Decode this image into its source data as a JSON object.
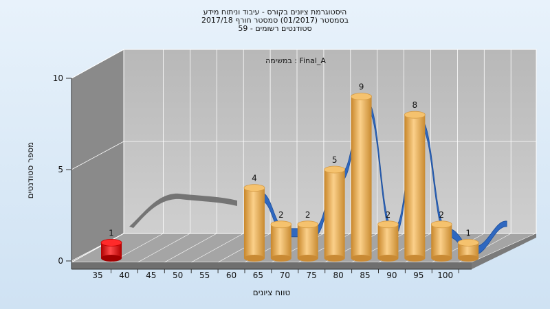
{
  "title_lines": [
    "היסטוגרמת ציונים בקורס - עיבוד וניתוח מידע",
    "בסמסטר  (01/2017)  סמסטר חורף 2017/18",
    "סטודנטים רשומים - 59"
  ],
  "chart_data": {
    "type": "bar",
    "title": "היסטוגרמת ציונים בקורס - עיבוד וניתוח מידע",
    "annotation": "Final_A : במשימה",
    "xlabel": "טווח ציונים",
    "ylabel": "מספר סטודנטים",
    "x_ticks": [
      "35",
      "40",
      "45",
      "50",
      "55",
      "60",
      "65",
      "70",
      "75",
      "80",
      "85",
      "90",
      "95",
      "100"
    ],
    "y_ticks": [
      "0",
      "5",
      "10"
    ],
    "ylim": [
      0,
      10
    ],
    "bars": [
      {
        "x": 35,
        "value": 1,
        "color": "#e01010"
      },
      {
        "x": 62.5,
        "value": 4,
        "color": "#f0b050"
      },
      {
        "x": 67.5,
        "value": 2,
        "color": "#f0b050"
      },
      {
        "x": 72.5,
        "value": 2,
        "color": "#f0b050"
      },
      {
        "x": 77.5,
        "value": 5,
        "color": "#f0b050"
      },
      {
        "x": 82.5,
        "value": 9,
        "color": "#f0b050"
      },
      {
        "x": 87.5,
        "value": 2,
        "color": "#f0b050"
      },
      {
        "x": 92.5,
        "value": 8,
        "color": "#f0b050"
      },
      {
        "x": 97.5,
        "value": 2,
        "color": "#f0b050"
      },
      {
        "x": 102.5,
        "value": 1,
        "color": "#f0b050"
      }
    ],
    "grid": true,
    "colors": {
      "curve": "#2f68c0",
      "curve_shadow": "#666666",
      "wall": "#c0c0c0",
      "side_wall": "#8a8a8a",
      "floor": "#9a9a9a"
    }
  }
}
